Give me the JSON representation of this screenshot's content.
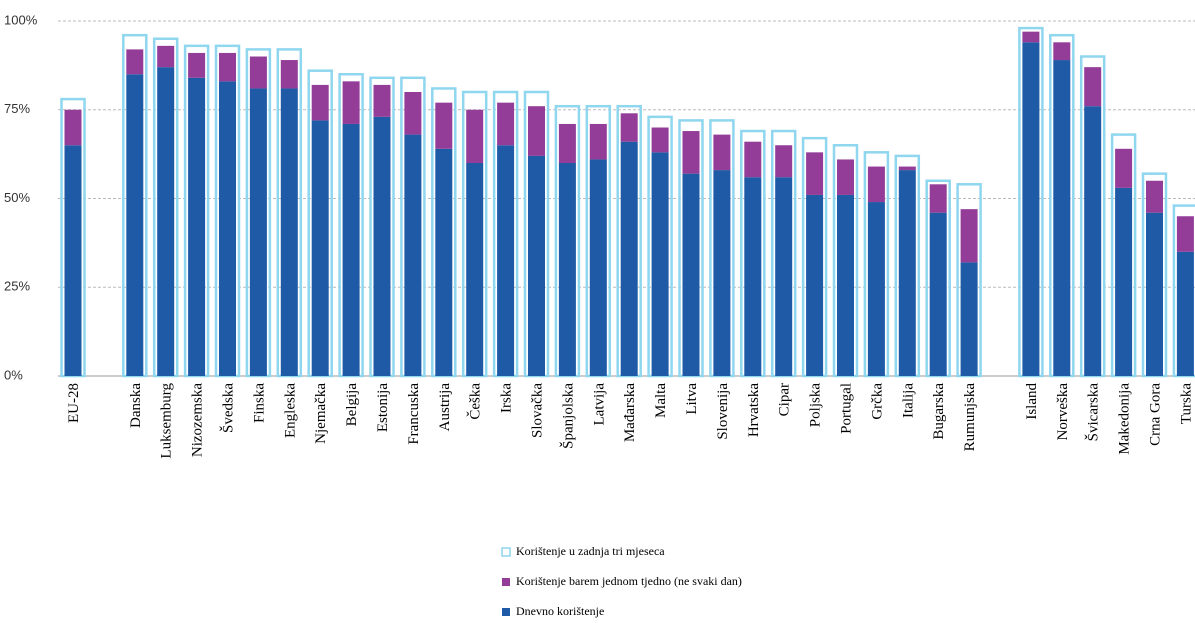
{
  "chart_data": {
    "type": "bar",
    "categories": [
      "EU-28",
      "Danska",
      "Luksemburg",
      "Nizozemska",
      "Švedska",
      "Finska",
      "Engleska",
      "Njemačka",
      "Belgija",
      "Estonija",
      "Francuska",
      "Austrija",
      "Češka",
      "Irska",
      "Slovačka",
      "Španjolska",
      "Latvija",
      "Mađarska",
      "Malta",
      "Litva",
      "Slovenija",
      "Hrvatska",
      "Cipar",
      "Poljska",
      "Portugal",
      "Grčka",
      "Italija",
      "Bugarska",
      "Rumunjska",
      "Island",
      "Norveška",
      "Švicarska",
      "Makedonija",
      "Crna Gora",
      "Turska"
    ],
    "series": [
      {
        "name": "Korištenje u zadnja tri mjeseca",
        "color": "#8fd6ef",
        "style": "outline",
        "values": [
          78,
          96,
          95,
          93,
          93,
          92,
          92,
          86,
          85,
          84,
          84,
          81,
          80,
          80,
          80,
          76,
          76,
          76,
          73,
          72,
          72,
          69,
          69,
          67,
          65,
          63,
          62,
          55,
          54,
          98,
          96,
          90,
          68,
          57,
          48
        ]
      },
      {
        "name": "Korištenje barem jednom tjedno (ne svaki dan)",
        "color": "#933d98",
        "values": [
          10,
          7,
          6,
          7,
          8,
          9,
          8,
          10,
          12,
          9,
          12,
          13,
          15,
          12,
          14,
          11,
          10,
          8,
          7,
          12,
          10,
          10,
          9,
          12,
          10,
          10,
          1,
          8,
          15,
          3,
          5,
          11,
          11,
          9,
          10
        ]
      },
      {
        "name": "Dnevno korištenje",
        "color": "#1f5aa6",
        "values": [
          65,
          85,
          87,
          84,
          83,
          81,
          81,
          72,
          71,
          73,
          68,
          64,
          60,
          65,
          62,
          60,
          61,
          66,
          63,
          57,
          58,
          56,
          56,
          51,
          51,
          49,
          58,
          46,
          32,
          94,
          89,
          76,
          53,
          46,
          35
        ]
      }
    ],
    "ylim": [
      0,
      100
    ],
    "yticks": [
      {
        "value": 0,
        "label": "0%"
      },
      {
        "value": 25,
        "label": "25%"
      },
      {
        "value": 50,
        "label": "50%"
      },
      {
        "value": 75,
        "label": "75%"
      },
      {
        "value": 100,
        "label": "100%"
      }
    ],
    "grid": true
  }
}
